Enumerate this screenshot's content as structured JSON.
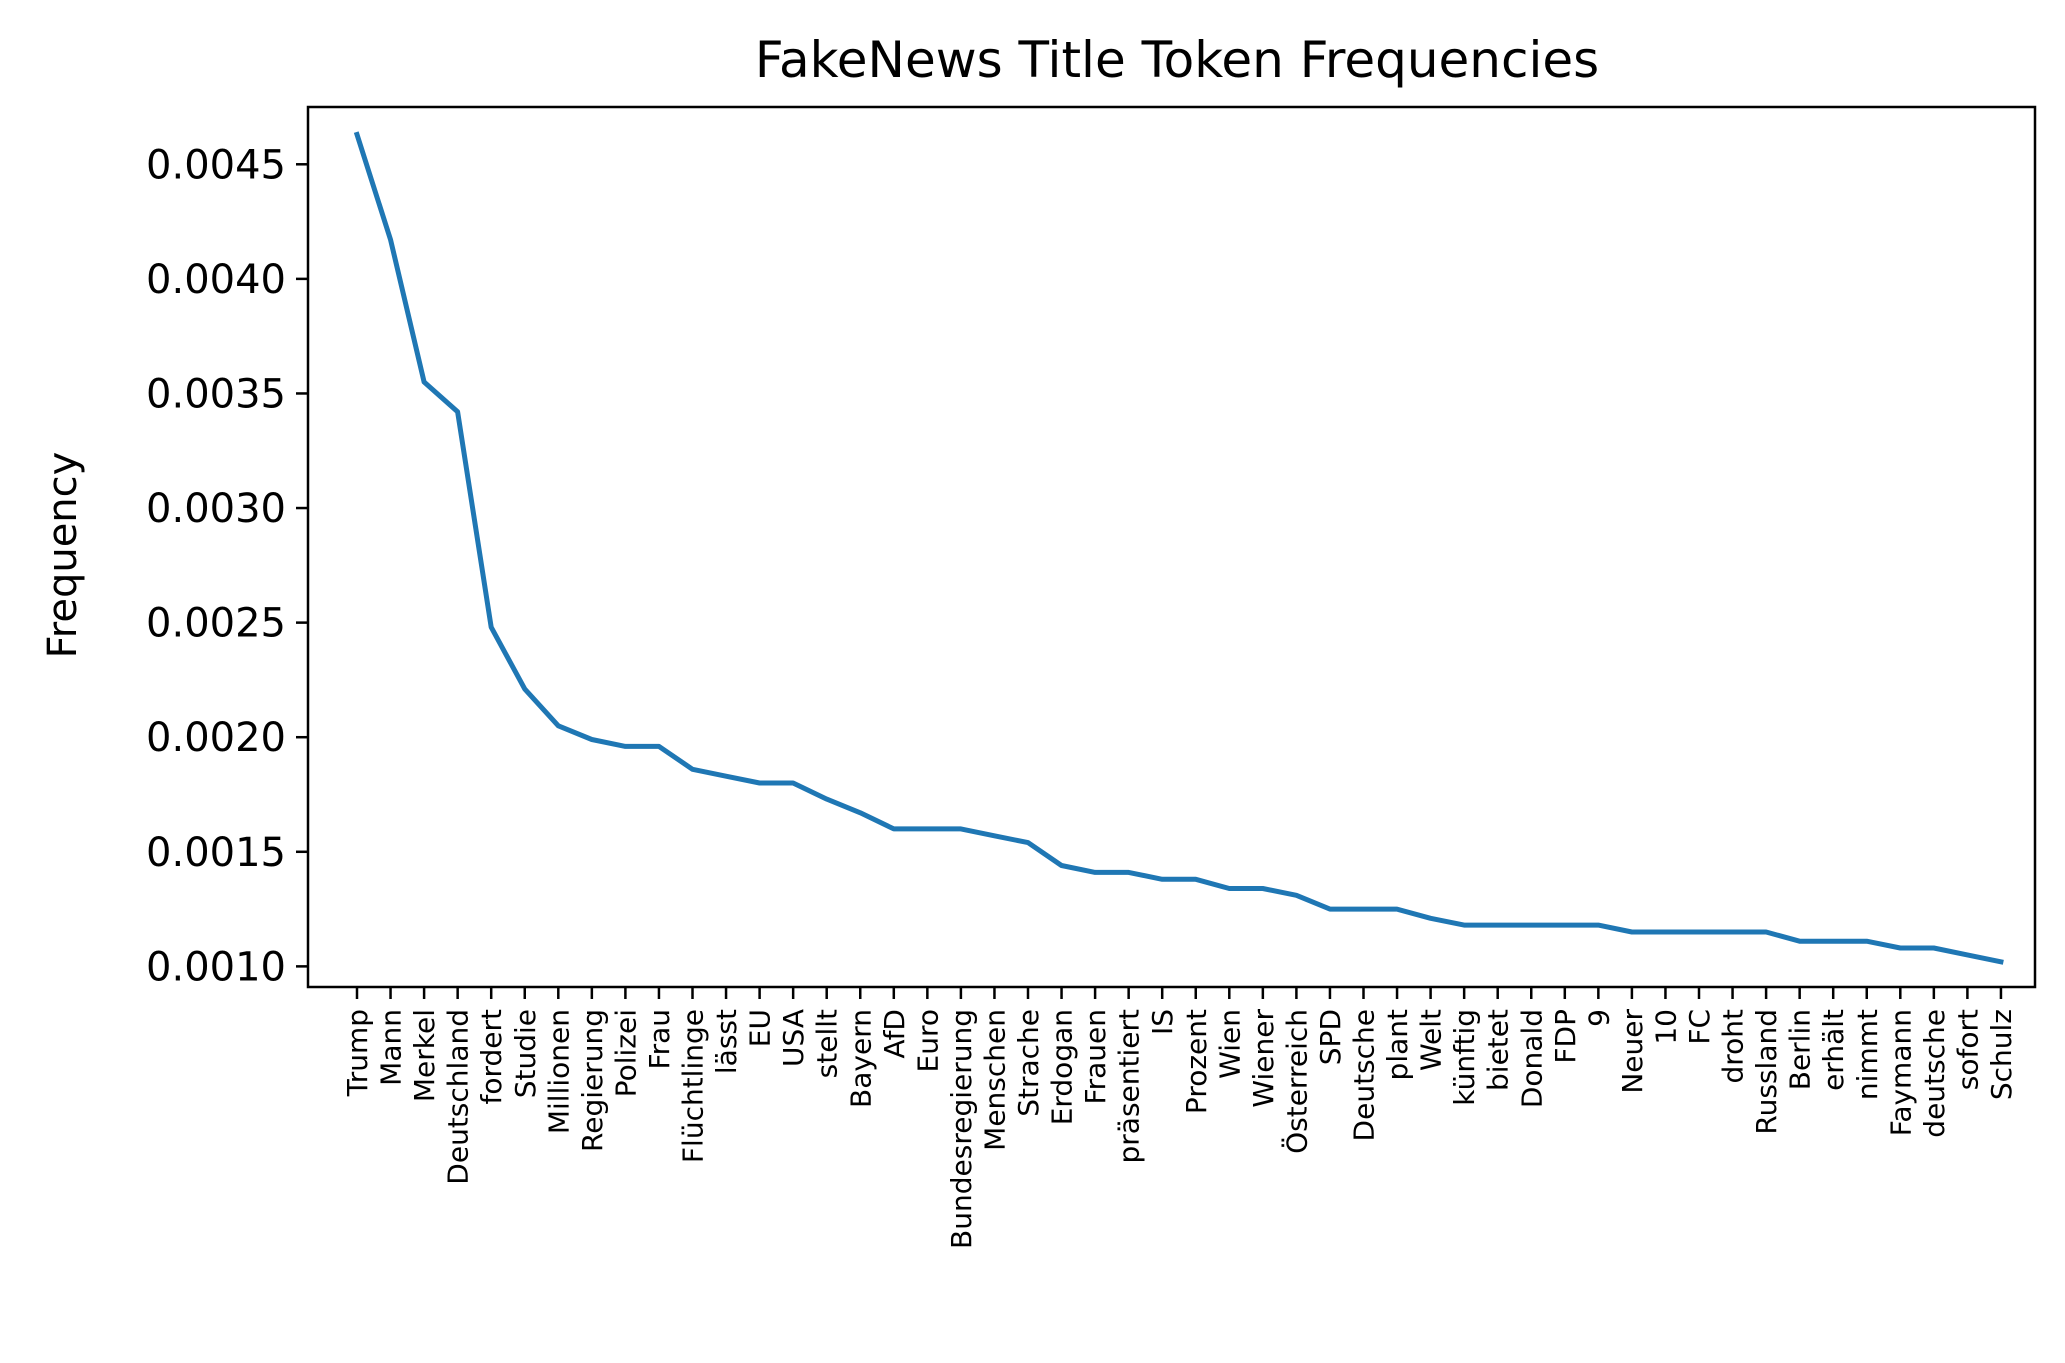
{
  "chart_data": {
    "type": "line",
    "title": "FakeNews Title Token Frequencies",
    "xlabel": "",
    "ylabel": "Frequency",
    "ylim": [
      0.00091,
      0.00475
    ],
    "yticks": [
      "0.0010",
      "0.0015",
      "0.0020",
      "0.0025",
      "0.0030",
      "0.0035",
      "0.0040",
      "0.0045"
    ],
    "ytick_values": [
      0.001,
      0.0015,
      0.002,
      0.0025,
      0.003,
      0.0035,
      0.004,
      0.0045
    ],
    "grid": false,
    "color": "#1f77b4",
    "categories": [
      "Trump",
      "Mann",
      "Merkel",
      "Deutschland",
      "fordert",
      "Studie",
      "Millionen",
      "Regierung",
      "Polizei",
      "Frau",
      "Flüchtlinge",
      "lässt",
      "EU",
      "USA",
      "stellt",
      "Bayern",
      "AfD",
      "Euro",
      "Bundesregierung",
      "Menschen",
      "Strache",
      "Erdogan",
      "Frauen",
      "präsentiert",
      "IS",
      "Prozent",
      "Wien",
      "Wiener",
      "Österreich",
      "SPD",
      "Deutsche",
      "plant",
      "Welt",
      "künftig",
      "bietet",
      "Donald",
      "FDP",
      "9",
      "Neuer",
      "10",
      "FC",
      "droht",
      "Russland",
      "Berlin",
      "erhält",
      "nimmt",
      "Faymann",
      "deutsche",
      "sofort",
      "Schulz"
    ],
    "values": [
      0.00463,
      0.00417,
      0.00355,
      0.00342,
      0.00248,
      0.00221,
      0.00205,
      0.00199,
      0.00196,
      0.00196,
      0.00186,
      0.00183,
      0.0018,
      0.0018,
      0.00173,
      0.00167,
      0.0016,
      0.0016,
      0.0016,
      0.00157,
      0.00154,
      0.00144,
      0.00141,
      0.00141,
      0.00138,
      0.00138,
      0.00134,
      0.00134,
      0.00131,
      0.00125,
      0.00125,
      0.00125,
      0.00121,
      0.00118,
      0.00118,
      0.00118,
      0.00118,
      0.00118,
      0.00115,
      0.00115,
      0.00115,
      0.00115,
      0.00115,
      0.00111,
      0.00111,
      0.00111,
      0.00108,
      0.00108,
      0.00105,
      0.00102
    ]
  }
}
